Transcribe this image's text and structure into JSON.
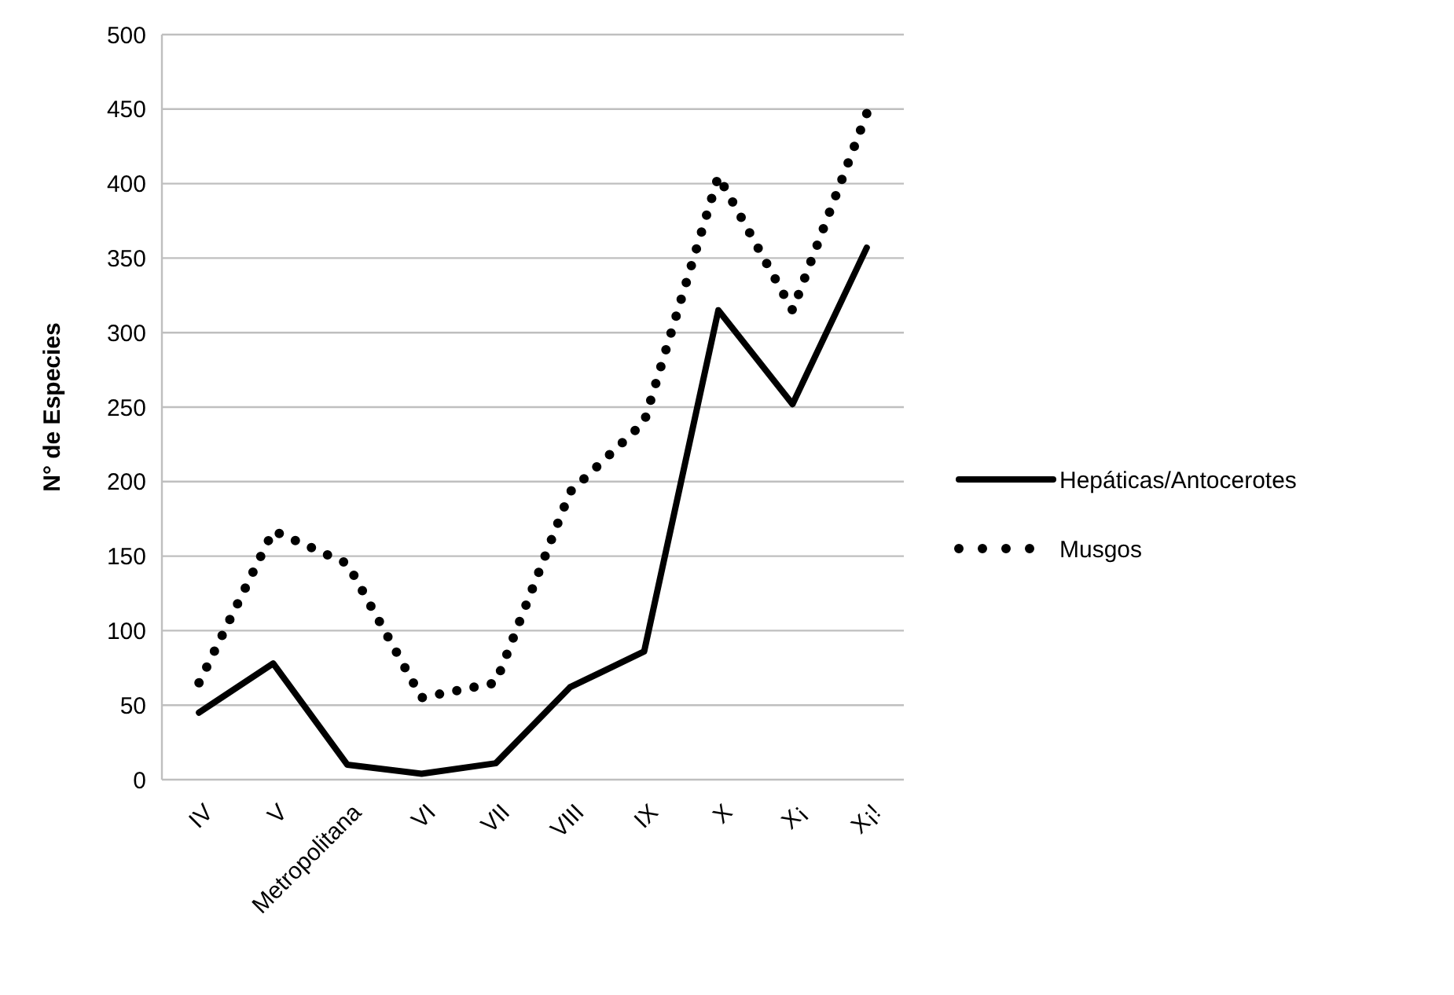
{
  "chart_data": {
    "type": "line",
    "ylabel": "N° de Especies",
    "categories": [
      "IV",
      "V",
      "Metropolitana",
      "VI",
      "VII",
      "VIII",
      "IX",
      "X",
      "X¡",
      "X¡!"
    ],
    "series": [
      {
        "name": "Hepáticas/Antocerotes",
        "color": "#000000",
        "line_style": "solid",
        "values": [
          45,
          78,
          10,
          4,
          11,
          62,
          86,
          315,
          252,
          357
        ]
      },
      {
        "name": "Musgos",
        "color": "#000000",
        "line_style": "dotted",
        "values": [
          65,
          167,
          145,
          55,
          65,
          193,
          240,
          405,
          315,
          447
        ]
      }
    ],
    "ylim": [
      0,
      500
    ],
    "yticks": [
      0,
      50,
      100,
      150,
      200,
      250,
      300,
      350,
      400,
      450,
      500
    ],
    "grid": "y",
    "legend": "right",
    "marker": "none"
  }
}
